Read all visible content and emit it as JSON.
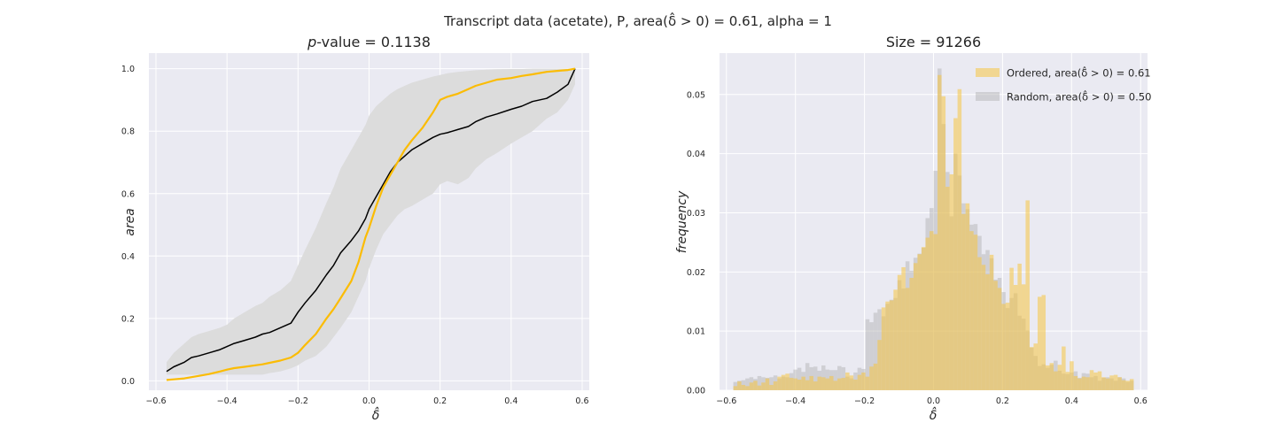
{
  "figure": {
    "suptitle": "Transcript data (acetate), P, area(δ̂ > 0) = 0.61, alpha = 1"
  },
  "chart_data": [
    {
      "type": "line",
      "title": "p-value = 0.1138",
      "xlabel": "δ̂",
      "ylabel": "area",
      "xlim": [
        -0.62,
        0.62
      ],
      "ylim": [
        -0.03,
        1.05
      ],
      "xticks": [
        -0.6,
        -0.4,
        -0.2,
        0.0,
        0.2,
        0.4,
        0.6
      ],
      "xtick_labels": [
        "−0.6",
        "−0.4",
        "−0.2",
        "0.0",
        "0.2",
        "0.4",
        "0.6"
      ],
      "yticks": [
        0.0,
        0.2,
        0.4,
        0.6,
        0.8,
        1.0
      ],
      "ytick_labels": [
        "0.0",
        "0.2",
        "0.4",
        "0.6",
        "0.8",
        "1.0"
      ],
      "grid": true,
      "colors": {
        "ordered": "#fbbc04",
        "random": "#000000",
        "band": "#dcdcdc",
        "background": "#eaeaf2"
      },
      "x": [
        -0.57,
        -0.55,
        -0.52,
        -0.5,
        -0.48,
        -0.45,
        -0.42,
        -0.4,
        -0.38,
        -0.35,
        -0.32,
        -0.3,
        -0.28,
        -0.25,
        -0.22,
        -0.2,
        -0.18,
        -0.15,
        -0.12,
        -0.1,
        -0.08,
        -0.05,
        -0.03,
        -0.01,
        0.0,
        0.02,
        0.04,
        0.06,
        0.08,
        0.1,
        0.12,
        0.15,
        0.18,
        0.2,
        0.22,
        0.25,
        0.28,
        0.3,
        0.33,
        0.36,
        0.4,
        0.43,
        0.46,
        0.5,
        0.53,
        0.56,
        0.58
      ],
      "series": [
        {
          "key": "ordered",
          "values": [
            0.003,
            0.005,
            0.008,
            0.012,
            0.016,
            0.022,
            0.03,
            0.036,
            0.041,
            0.045,
            0.05,
            0.053,
            0.058,
            0.065,
            0.075,
            0.09,
            0.115,
            0.15,
            0.2,
            0.23,
            0.265,
            0.32,
            0.38,
            0.46,
            0.49,
            0.56,
            0.62,
            0.66,
            0.7,
            0.74,
            0.77,
            0.81,
            0.86,
            0.9,
            0.91,
            0.92,
            0.935,
            0.945,
            0.955,
            0.965,
            0.97,
            0.977,
            0.982,
            0.99,
            0.993,
            0.996,
            1.0
          ]
        },
        {
          "key": "random",
          "values": [
            0.03,
            0.045,
            0.06,
            0.075,
            0.08,
            0.09,
            0.1,
            0.11,
            0.12,
            0.13,
            0.14,
            0.15,
            0.155,
            0.17,
            0.185,
            0.22,
            0.25,
            0.29,
            0.34,
            0.37,
            0.41,
            0.45,
            0.48,
            0.52,
            0.55,
            0.59,
            0.63,
            0.67,
            0.7,
            0.72,
            0.74,
            0.76,
            0.78,
            0.79,
            0.795,
            0.805,
            0.815,
            0.83,
            0.845,
            0.855,
            0.87,
            0.88,
            0.895,
            0.905,
            0.925,
            0.95,
            1.0
          ]
        }
      ],
      "band_lower": [
        0.02,
        0.02,
        0.02,
        0.02,
        0.02,
        0.02,
        0.02,
        0.02,
        0.02,
        0.02,
        0.02,
        0.02,
        0.025,
        0.03,
        0.04,
        0.05,
        0.065,
        0.08,
        0.11,
        0.14,
        0.17,
        0.22,
        0.27,
        0.32,
        0.36,
        0.42,
        0.47,
        0.5,
        0.53,
        0.55,
        0.56,
        0.58,
        0.6,
        0.63,
        0.64,
        0.63,
        0.65,
        0.68,
        0.71,
        0.73,
        0.76,
        0.78,
        0.8,
        0.84,
        0.86,
        0.9,
        0.95
      ],
      "band_upper": [
        0.06,
        0.09,
        0.12,
        0.14,
        0.15,
        0.16,
        0.17,
        0.18,
        0.2,
        0.22,
        0.24,
        0.25,
        0.27,
        0.29,
        0.32,
        0.37,
        0.42,
        0.49,
        0.57,
        0.62,
        0.68,
        0.74,
        0.78,
        0.82,
        0.85,
        0.88,
        0.9,
        0.92,
        0.935,
        0.945,
        0.955,
        0.965,
        0.975,
        0.98,
        0.985,
        0.99,
        0.993,
        0.995,
        0.997,
        0.998,
        0.999,
        0.999,
        1.0,
        1.0,
        1.0,
        1.0,
        1.0
      ]
    },
    {
      "type": "bar",
      "title": "Size = 91266",
      "xlabel": "δ̂",
      "ylabel": "frequency",
      "xlim": [
        -0.62,
        0.62
      ],
      "ylim": [
        0.0,
        0.057
      ],
      "xticks": [
        -0.6,
        -0.4,
        -0.2,
        0.0,
        0.2,
        0.4,
        0.6
      ],
      "xtick_labels": [
        "−0.6",
        "−0.4",
        "−0.2",
        "0.0",
        "0.2",
        "0.4",
        "0.6"
      ],
      "yticks": [
        0.0,
        0.01,
        0.02,
        0.03,
        0.04,
        0.05
      ],
      "ytick_labels": [
        "0.00",
        "0.01",
        "0.02",
        "0.03",
        "0.04",
        "0.05"
      ],
      "grid": true,
      "legend_position": "top-right",
      "colors": {
        "ordered": "#f5c542",
        "random": "#b0b0b0",
        "background": "#eaeaf2"
      },
      "bins": {
        "start": -0.58,
        "end": 0.58,
        "count": 100
      },
      "series": [
        {
          "key": "ordered",
          "name": "Ordered, area(δ̂ > 0) = 0.61",
          "values": [
            0.0007,
            0.0015,
            0.0009,
            0.0007,
            0.0013,
            0.0016,
            0.0008,
            0.0013,
            0.002,
            0.0009,
            0.0015,
            0.0023,
            0.0026,
            0.0028,
            0.0021,
            0.002,
            0.0018,
            0.0023,
            0.0017,
            0.0024,
            0.0015,
            0.0023,
            0.0022,
            0.002,
            0.0024,
            0.0016,
            0.002,
            0.0021,
            0.003,
            0.0025,
            0.0018,
            0.0026,
            0.003,
            0.0023,
            0.004,
            0.0045,
            0.0085,
            0.014,
            0.015,
            0.0152,
            0.017,
            0.0195,
            0.0208,
            0.0173,
            0.019,
            0.0215,
            0.023,
            0.0242,
            0.0258,
            0.0269,
            0.0264,
            0.0533,
            0.0497,
            0.0344,
            0.0365,
            0.046,
            0.0509,
            0.0298,
            0.0316,
            0.0269,
            0.0263,
            0.0225,
            0.0212,
            0.0196,
            0.0229,
            0.0185,
            0.0173,
            0.0146,
            0.0148,
            0.0207,
            0.0178,
            0.0214,
            0.0179,
            0.0321,
            0.0073,
            0.0079,
            0.0158,
            0.0161,
            0.0042,
            0.0046,
            0.0032,
            0.0043,
            0.0074,
            0.0031,
            0.0049,
            0.0024,
            0.002,
            0.0023,
            0.0022,
            0.0034,
            0.003,
            0.0032,
            0.0022,
            0.002,
            0.0025,
            0.0026,
            0.0022,
            0.0017,
            0.0016,
            0.0019
          ]
        },
        {
          "key": "random",
          "name": "Random, area(δ̂ > 0) = 0.50",
          "values": [
            0.0014,
            0.0016,
            0.0017,
            0.002,
            0.0022,
            0.0019,
            0.0024,
            0.0022,
            0.0021,
            0.0022,
            0.0025,
            0.002,
            0.0023,
            0.0022,
            0.0029,
            0.0035,
            0.0038,
            0.0031,
            0.0046,
            0.0039,
            0.004,
            0.0033,
            0.0042,
            0.0035,
            0.0034,
            0.0034,
            0.0041,
            0.0039,
            0.0023,
            0.002,
            0.003,
            0.0038,
            0.0036,
            0.012,
            0.0115,
            0.0131,
            0.0137,
            0.0125,
            0.0146,
            0.0153,
            0.0156,
            0.0186,
            0.0172,
            0.0218,
            0.0202,
            0.0224,
            0.0231,
            0.0241,
            0.0291,
            0.0308,
            0.0371,
            0.0544,
            0.045,
            0.0369,
            0.0294,
            0.04,
            0.0363,
            0.0316,
            0.0306,
            0.028,
            0.0281,
            0.0261,
            0.023,
            0.0237,
            0.0223,
            0.0187,
            0.019,
            0.0166,
            0.0139,
            0.0156,
            0.0164,
            0.0126,
            0.0121,
            0.0101,
            0.0072,
            0.0058,
            0.0041,
            0.0044,
            0.0038,
            0.0043,
            0.005,
            0.0033,
            0.0028,
            0.0027,
            0.003,
            0.0032,
            0.0021,
            0.0029,
            0.0028,
            0.0022,
            0.0024,
            0.0016,
            0.0021,
            0.0022,
            0.002,
            0.0016,
            0.0022,
            0.002,
            0.0014,
            0.0016
          ]
        }
      ]
    }
  ]
}
